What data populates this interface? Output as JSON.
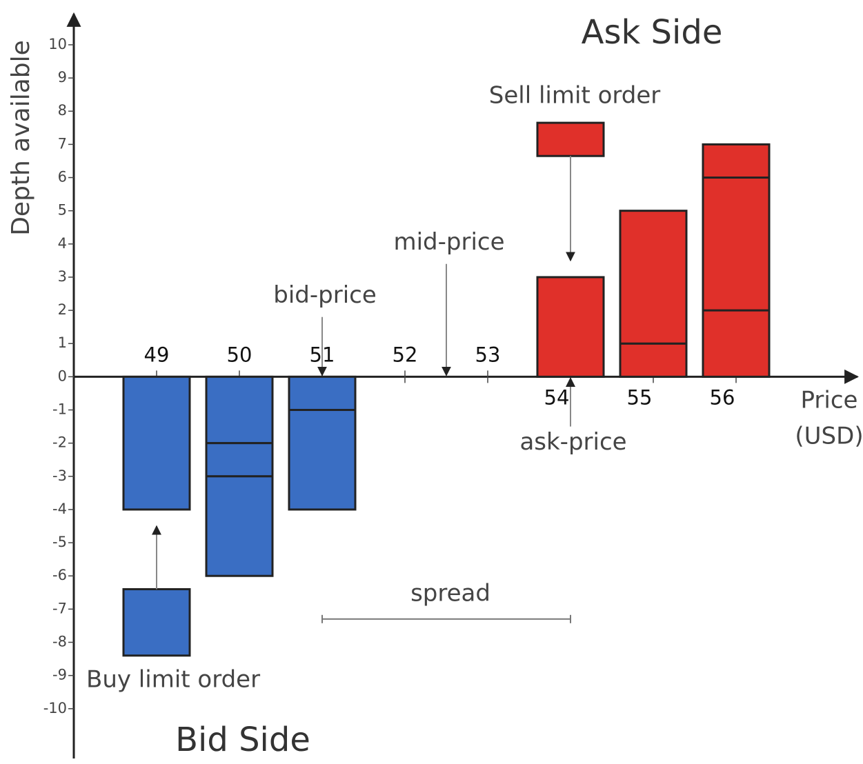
{
  "chart_data": {
    "type": "order-book",
    "ylabel": "Depth available",
    "xlabel_lines": [
      "Price",
      "(USD)"
    ],
    "ask_side_label": "Ask Side",
    "bid_side_label": "Bid Side",
    "xlim": [
      48,
      57.4
    ],
    "ylim": [
      -11.5,
      11.1
    ],
    "xticks": [
      49,
      50,
      51,
      52,
      53,
      54,
      55,
      56
    ],
    "yticks": [
      -10,
      -9,
      -8,
      -7,
      -6,
      -5,
      -4,
      -3,
      -2,
      -1,
      0,
      1,
      2,
      3,
      4,
      5,
      6,
      7,
      8,
      9,
      10
    ],
    "bid_color": "#3a6ec3",
    "ask_color": "#e0302a",
    "bids": [
      {
        "price": 49,
        "orders": [
          4
        ]
      },
      {
        "price": 50,
        "orders": [
          2,
          1,
          3
        ]
      },
      {
        "price": 51,
        "orders": [
          1,
          3
        ]
      }
    ],
    "asks": [
      {
        "price": 54,
        "orders": [
          3
        ]
      },
      {
        "price": 55,
        "orders": [
          1,
          4
        ]
      },
      {
        "price": 56,
        "orders": [
          2,
          4,
          1
        ]
      }
    ],
    "buy_limit_order": {
      "label": "Buy limit order",
      "price": 49,
      "top": -6.4,
      "size": 2,
      "arrow_to": -4.5
    },
    "sell_limit_order": {
      "label": "Sell limit order",
      "price": 54,
      "bottom": 6.65,
      "size": 1,
      "arrow_to": 3.5
    },
    "annotations": [
      {
        "label": "bid-price",
        "x": 51,
        "from": 1.8,
        "to": 0
      },
      {
        "label": "mid-price",
        "x": 52.5,
        "from": 3.4,
        "to": 0
      },
      {
        "label": "ask-price",
        "x": 54,
        "from": -1.5,
        "to": 0
      }
    ],
    "spread": {
      "label": "spread",
      "from": 51,
      "to": 54,
      "y": -7.3
    }
  }
}
